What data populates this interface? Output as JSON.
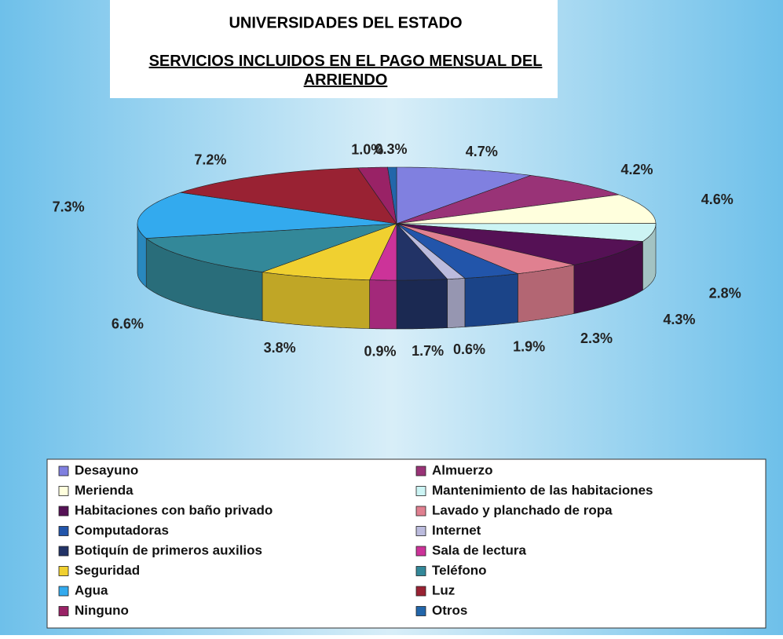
{
  "chart_data": {
    "type": "pie",
    "title": "UNIVERSIDADES DEL ESTADO",
    "subtitle": "SERVICIOS INCLUIDOS EN EL PAGO MENSUAL DEL ARRIENDO",
    "categories": [
      "Desayuno",
      "Almuerzo",
      "Merienda",
      "Mantenimiento de las habitaciones",
      "Habitaciones con baño privado",
      "Lavado y planchado de ropa",
      "Computadoras",
      "Internet",
      "Botiquín de primeros auxilios",
      "Sala de lectura",
      "Seguridad",
      "Teléfono",
      "Agua",
      "Luz",
      "Ninguno",
      "Otros"
    ],
    "values": [
      4.7,
      4.2,
      4.6,
      2.8,
      4.3,
      2.3,
      1.9,
      0.6,
      1.7,
      0.9,
      3.8,
      6.6,
      7.3,
      7.2,
      1.0,
      0.3
    ],
    "value_labels": [
      "4.7%",
      "4.2%",
      "4.6%",
      "2.8%",
      "4.3%",
      "2.3%",
      "1.9%",
      "0.6%",
      "1.7%",
      "0.9%",
      "3.8%",
      "6.6%",
      "7.3%",
      "7.2%",
      "1.0%",
      "0.3%"
    ],
    "colors": [
      "#8080e0",
      "#993377",
      "#ffffdd",
      "#ccf4f4",
      "#551155",
      "#e08090",
      "#2255aa",
      "#bbbbdd",
      "#223366",
      "#cc3399",
      "#f0d030",
      "#338899",
      "#33aaee",
      "#992233",
      "#992266",
      "#2266aa"
    ],
    "legend": "bottom"
  }
}
